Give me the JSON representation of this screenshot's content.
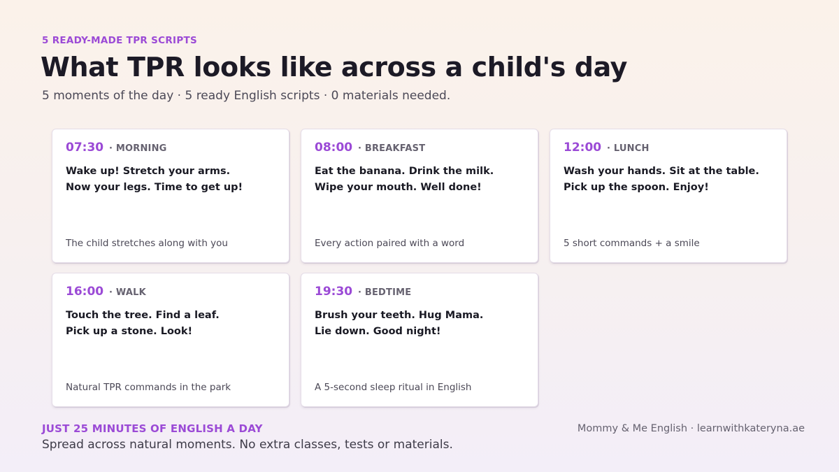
{
  "header": {
    "eyebrow": "5 READY-MADE TPR SCRIPTS",
    "title": "What TPR looks like across a child's day",
    "subtitle": "5 moments of the day · 5 ready English scripts · 0 materials needed."
  },
  "cards": [
    {
      "time": "07:30",
      "moment": "· MORNING",
      "line1": "Wake up! Stretch your arms.",
      "line2": "Now your legs. Time to get up!",
      "note": "The child stretches along with you"
    },
    {
      "time": "08:00",
      "moment": "· BREAKFAST",
      "line1": "Eat the banana. Drink the milk.",
      "line2": "Wipe your mouth. Well done!",
      "note": "Every action paired with a word"
    },
    {
      "time": "12:00",
      "moment": "· LUNCH",
      "line1": "Wash your hands. Sit at the table.",
      "line2": "Pick up the spoon. Enjoy!",
      "note": "5 short commands + a smile"
    },
    {
      "time": "16:00",
      "moment": "· WALK",
      "line1": "Touch the tree. Find a leaf.",
      "line2": "Pick up a stone. Look!",
      "note": "Natural TPR commands in the park"
    },
    {
      "time": "19:30",
      "moment": "· BEDTIME",
      "line1": "Brush your teeth. Hug Mama.",
      "line2": "Lie down. Good night!",
      "note": "A 5-second sleep ritual in English"
    }
  ],
  "footer": {
    "kicker": "JUST 25 MINUTES OF ENGLISH A DAY",
    "text": "Spread across natural moments. No extra classes, tests or materials.",
    "credit": "Mommy & Me English · learnwithkateryna.ae"
  },
  "colors": {
    "accent": "#9b4ad6",
    "text": "#1a1a24",
    "muted": "#666270"
  }
}
